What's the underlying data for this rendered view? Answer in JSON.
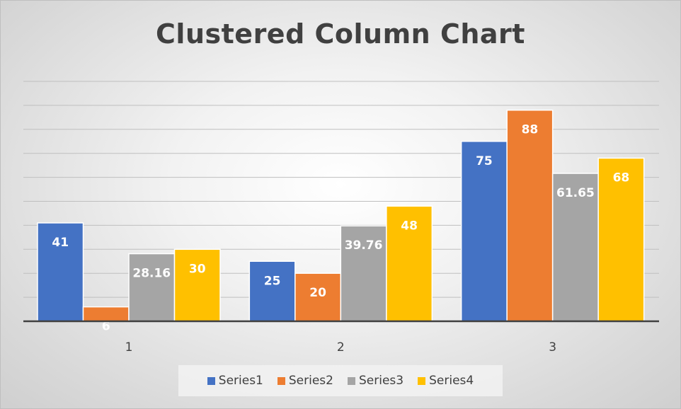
{
  "chart_data": {
    "type": "bar",
    "title": "Clustered Column Chart",
    "categories": [
      "1",
      "2",
      "3"
    ],
    "series": [
      {
        "name": "Series1",
        "values": [
          41,
          25,
          75
        ],
        "labels": [
          "41",
          "25",
          "75"
        ],
        "color": "#4472C4"
      },
      {
        "name": "Series2",
        "values": [
          6,
          20,
          88
        ],
        "labels": [
          "6",
          "20",
          "88"
        ],
        "color": "#ED7D31"
      },
      {
        "name": "Series3",
        "values": [
          28.16,
          39.76,
          61.65
        ],
        "labels": [
          "28.16",
          "39.76",
          "61.65"
        ],
        "color": "#A5A5A5"
      },
      {
        "name": "Series4",
        "values": [
          30,
          48,
          68
        ],
        "labels": [
          "30",
          "48",
          "68"
        ],
        "color": "#FFC000"
      }
    ],
    "xlabel": "",
    "ylabel": "",
    "ylim": [
      0,
      100
    ],
    "grid": true,
    "legend_position": "bottom"
  }
}
